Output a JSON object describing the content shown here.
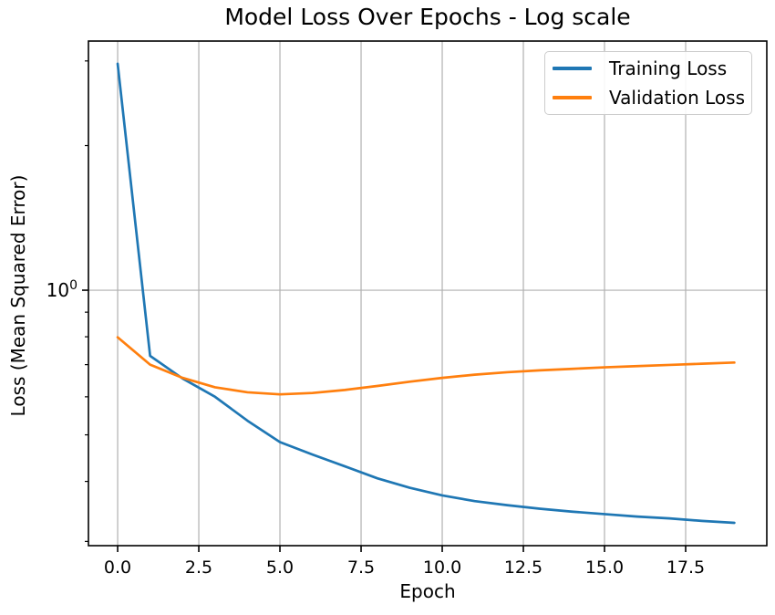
{
  "figure": {
    "title": "Model Loss Over Epochs - Log scale",
    "xlabel": "Epoch",
    "ylabel": "Loss (Mean Squared Error)",
    "y_tick_label": {
      "base": "10",
      "exponent": "0"
    }
  },
  "legend": {
    "items": [
      {
        "label": "Training Loss",
        "color": "#1f77b4"
      },
      {
        "label": "Validation Loss",
        "color": "#ff7f0e"
      }
    ]
  },
  "chart_data": {
    "type": "line",
    "title": "Model Loss Over Epochs - Log scale",
    "xlabel": "Epoch",
    "ylabel": "Loss (Mean Squared Error)",
    "y_scale": "log",
    "grid": true,
    "legend_position": "upper right",
    "x": [
      0,
      1,
      2,
      3,
      4,
      5,
      6,
      7,
      8,
      9,
      10,
      11,
      12,
      13,
      14,
      15,
      16,
      17,
      18,
      19
    ],
    "series": [
      {
        "name": "Training Loss",
        "color": "#1f77b4",
        "values": [
          2.96,
          0.73,
          0.655,
          0.6,
          0.535,
          0.483,
          0.455,
          0.43,
          0.406,
          0.388,
          0.374,
          0.364,
          0.357,
          0.351,
          0.346,
          0.342,
          0.338,
          0.335,
          0.331,
          0.328
        ]
      },
      {
        "name": "Validation Loss",
        "color": "#ff7f0e",
        "values": [
          0.798,
          0.7,
          0.657,
          0.628,
          0.613,
          0.607,
          0.611,
          0.62,
          0.632,
          0.645,
          0.657,
          0.667,
          0.675,
          0.681,
          0.686,
          0.691,
          0.695,
          0.699,
          0.703,
          0.707
        ]
      }
    ],
    "xlim": [
      -0.9,
      20.0
    ],
    "ylim": [
      0.294,
      3.3
    ],
    "x_ticks": [
      0,
      2.5,
      5,
      7.5,
      10,
      12.5,
      15,
      17.5
    ],
    "x_tick_labels": [
      "0.0",
      "2.5",
      "5.0",
      "7.5",
      "10.0",
      "12.5",
      "15.0",
      "17.5"
    ],
    "y_major_ticks": [
      1
    ],
    "y_minor_ticks": [
      3,
      2,
      0.9,
      0.8,
      0.7,
      0.6,
      0.5,
      0.4,
      0.3
    ],
    "colors": {
      "grid": "#b0b0b0",
      "spine": "#000000",
      "tick_text": "#000000",
      "background": "#ffffff"
    }
  }
}
